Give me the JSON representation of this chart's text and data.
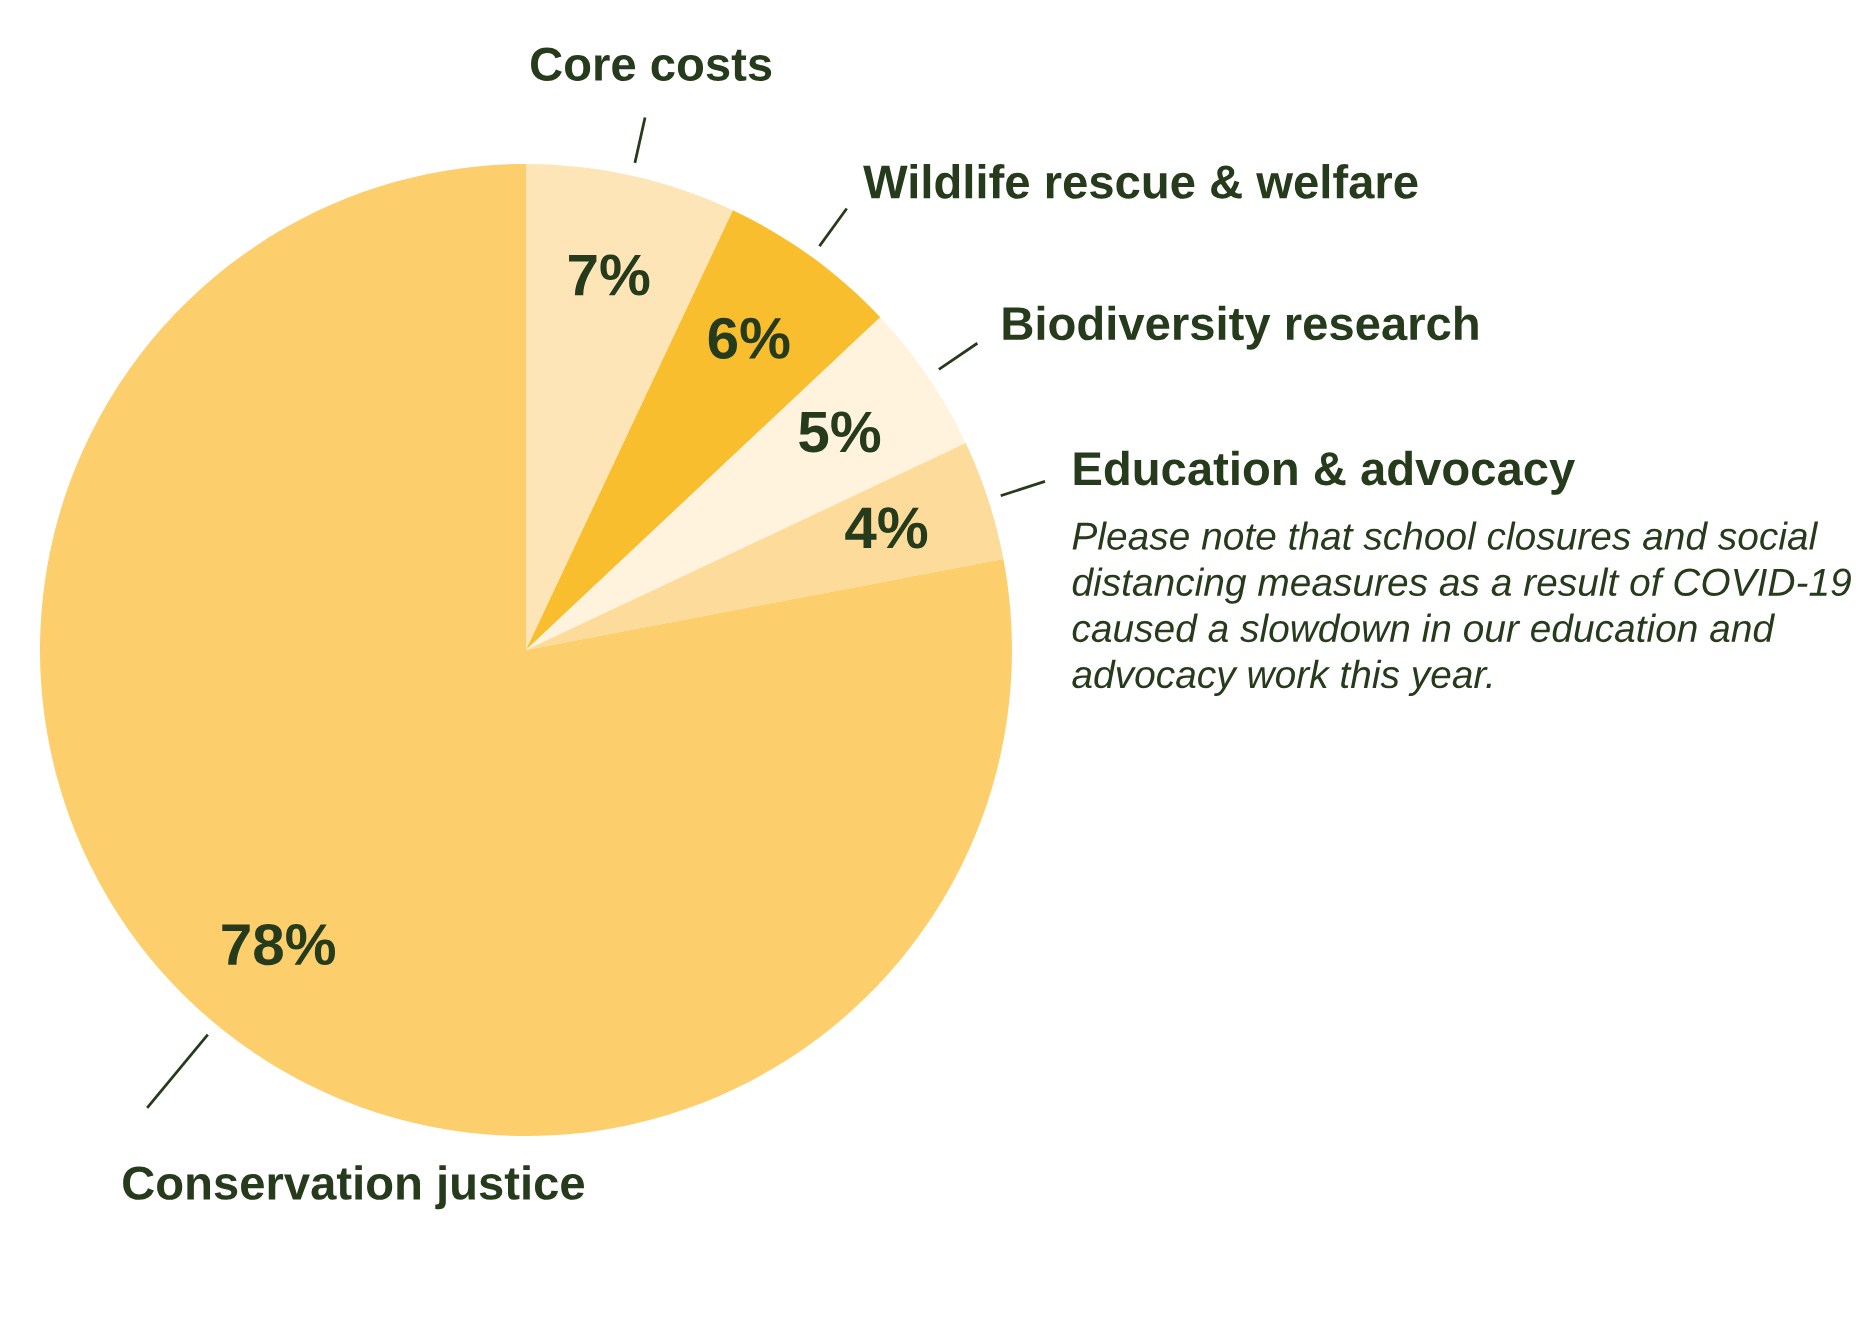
{
  "chart_data": {
    "type": "pie",
    "categories": [
      "Core costs",
      "Wildlife rescue & welfare",
      "Biodiversity research",
      "Education & advocacy",
      "Conservation justice"
    ],
    "values": [
      7,
      6,
      5,
      4,
      78
    ],
    "value_labels": [
      "7%",
      "6%",
      "5%",
      "4%",
      "78%"
    ],
    "colors": [
      "#fde5b8",
      "#f9be2e",
      "#fff3dd",
      "#fddb9a",
      "#fdce6c"
    ],
    "annotations": [
      "Please note that school closures and social distancing measures as a result of COVID-19 caused a slowdown in our education and advocacy work this year."
    ],
    "legend": false
  }
}
